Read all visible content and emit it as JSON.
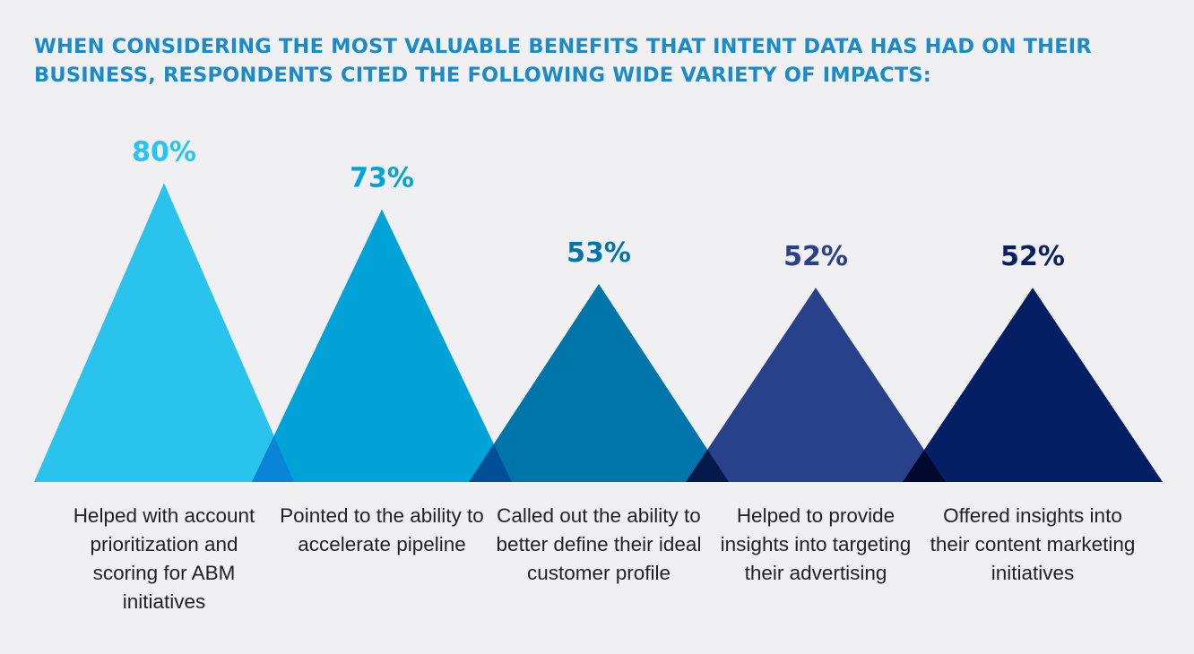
{
  "title": "WHEN CONSIDERING THE MOST VALUABLE BENEFITS THAT INTENT DATA HAS HAD ON THEIR BUSINESS, RESPONDENTS CITED THE FOLLOWING WIDE VARIETY OF IMPACTS:",
  "colors": {
    "title": "#1a8bc8",
    "overlap": "#0a84d6"
  },
  "chart_data": {
    "type": "bar",
    "categories": [
      "Helped with account prioritization and scoring for ABM initiatives",
      "Pointed to the ability to accelerate pipeline",
      "Called out the ability to better define their ideal customer profile",
      "Helped to provide insights into targeting their advertising",
      "Offered insights into their content marketing initiatives"
    ],
    "values": [
      80,
      73,
      53,
      52,
      52
    ],
    "value_labels": [
      "80%",
      "73%",
      "53%",
      "52%",
      "52%"
    ],
    "colors": [
      "#29c3ee",
      "#00a3d7",
      "#0075aa",
      "#28418a",
      "#061e63"
    ],
    "label_colors": [
      "#29c3ee",
      "#00a3d7",
      "#0075aa",
      "#28418a",
      "#061e63"
    ],
    "overlap_colors": [
      "#0a84d6",
      "#004e95",
      "#041a4a",
      "#010a2e"
    ],
    "ylim": [
      0,
      100
    ],
    "shape": "triangle"
  }
}
